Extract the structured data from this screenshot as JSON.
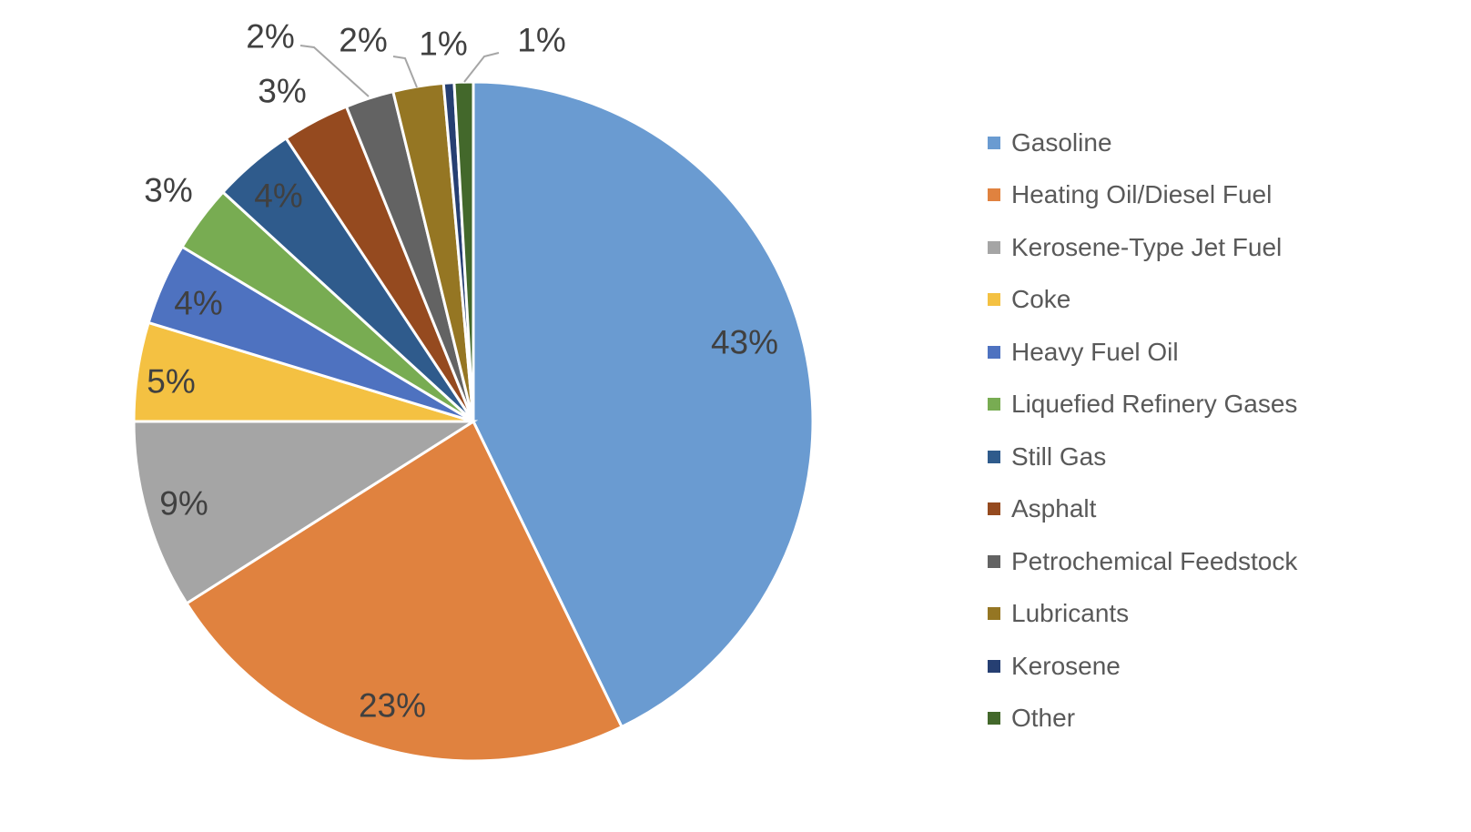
{
  "chart_data": {
    "type": "pie",
    "title": "",
    "start_angle": "12 o'clock, clockwise",
    "legend_position": "right",
    "categories": [
      "Gasoline",
      "Heating Oil/Diesel Fuel",
      "Kerosene-Type Jet Fuel",
      "Coke",
      "Heavy Fuel Oil",
      "Liquefied Refinery Gases",
      "Still Gas",
      "Asphalt",
      "Petrochemical Feedstock",
      "Lubricants",
      "Kerosene",
      "Other"
    ],
    "values": [
      42.8,
      23.2,
      9.0,
      4.7,
      3.9,
      3.2,
      3.9,
      3.2,
      2.3,
      2.4,
      0.5,
      0.9
    ],
    "labels": [
      "43%",
      "23%",
      "9%",
      "5%",
      "4%",
      "3%",
      "4%",
      "3%",
      "2%",
      "2%",
      "1%",
      "1%"
    ],
    "colors": [
      "#6A9BD1",
      "#E0823F",
      "#A5A5A5",
      "#F4C142",
      "#4E72C0",
      "#78AC52",
      "#2F5B8C",
      "#954A1F",
      "#636363",
      "#957623",
      "#263F72",
      "#43682B"
    ]
  }
}
